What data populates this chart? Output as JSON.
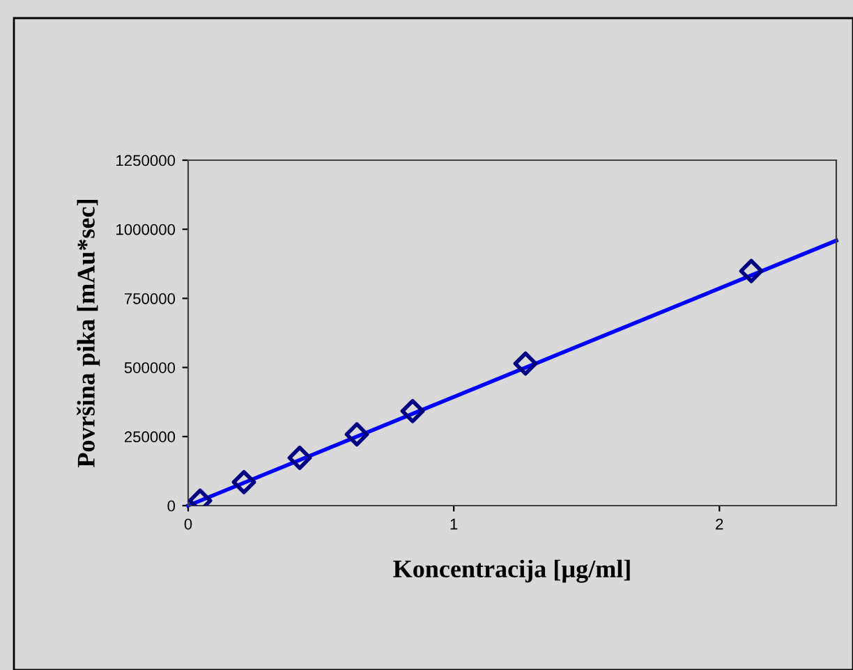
{
  "chart_data": {
    "type": "scatter",
    "xlabel": "Koncentracija [µg/ml]",
    "ylabel": "Površina pika [mAu*sec]",
    "x": [
      0.045,
      0.21,
      0.42,
      0.635,
      0.845,
      1.27,
      2.12
    ],
    "series": [
      {
        "color": "#000080",
        "marker": "diamond",
        "values": [
          18000,
          85000,
          173000,
          258000,
          342000,
          514000,
          849000
        ]
      },
      {
        "type": "line",
        "color": "#0000ff",
        "marker": "none",
        "line_style": "solid",
        "x": [
          0,
          2.44
        ],
        "values": [
          0,
          959000
        ]
      }
    ],
    "xlim": [
      0,
      2.44
    ],
    "xticks": [
      0,
      1,
      2
    ],
    "ylim": [
      0,
      1250000
    ],
    "yticks": [
      0,
      250000,
      500000,
      750000,
      1000000,
      1250000
    ],
    "grid": false,
    "legend": false
  }
}
